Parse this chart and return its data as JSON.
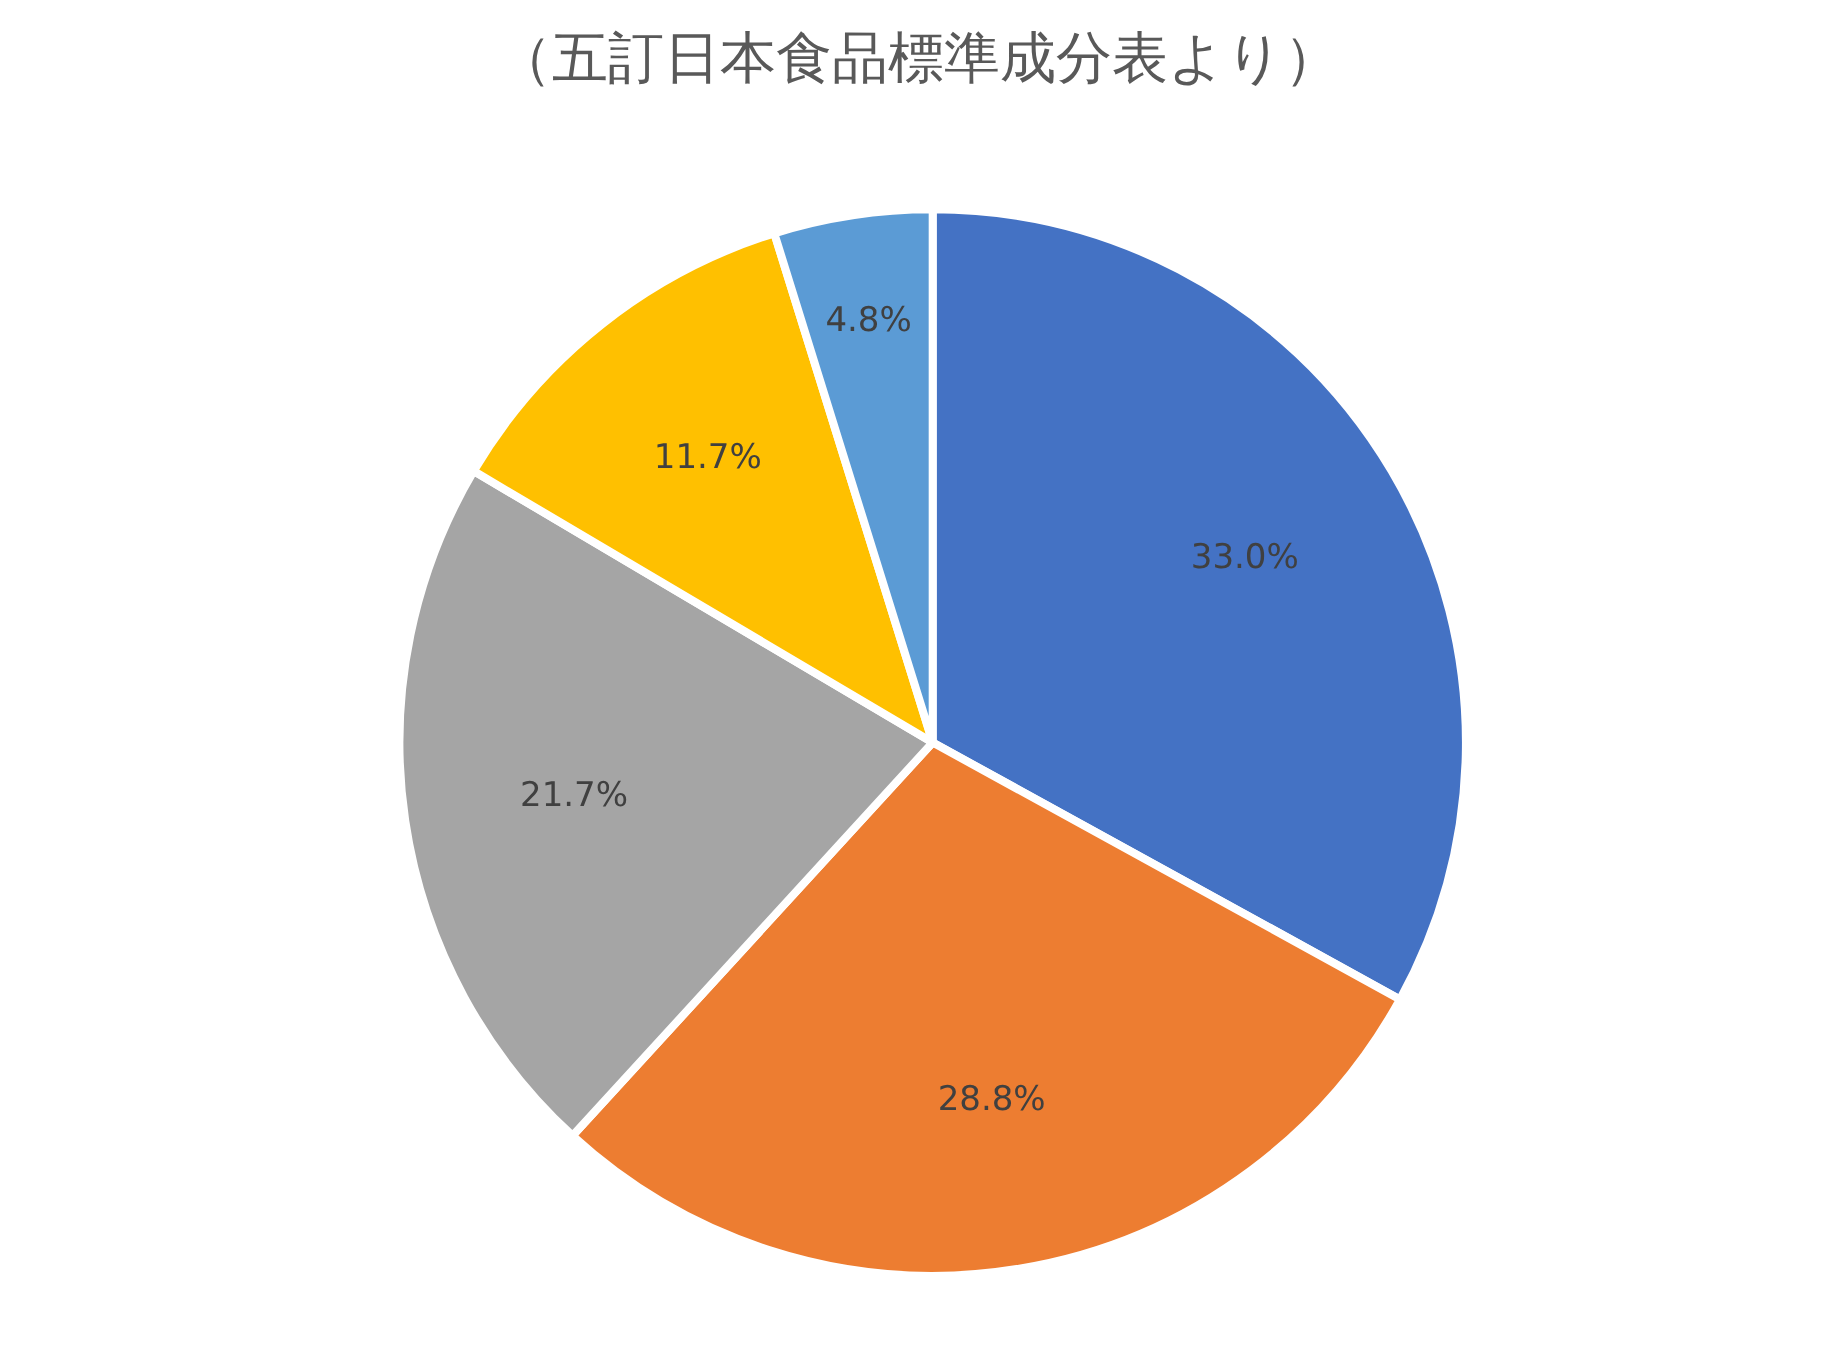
{
  "chart_data": {
    "type": "pie",
    "title": "（五訂日本食品標準成分表より）",
    "categories": [
      null,
      null,
      null,
      null,
      null
    ],
    "values": [
      33.0,
      28.8,
      21.7,
      11.7,
      4.8
    ],
    "colors": [
      "#4472c4",
      "#ed7d31",
      "#a5a5a5",
      "#ffc000",
      "#5b9bd5"
    ],
    "value_labels": [
      "33.0%",
      "28.8%",
      "21.7%",
      "11.7%",
      "4.8%"
    ]
  }
}
